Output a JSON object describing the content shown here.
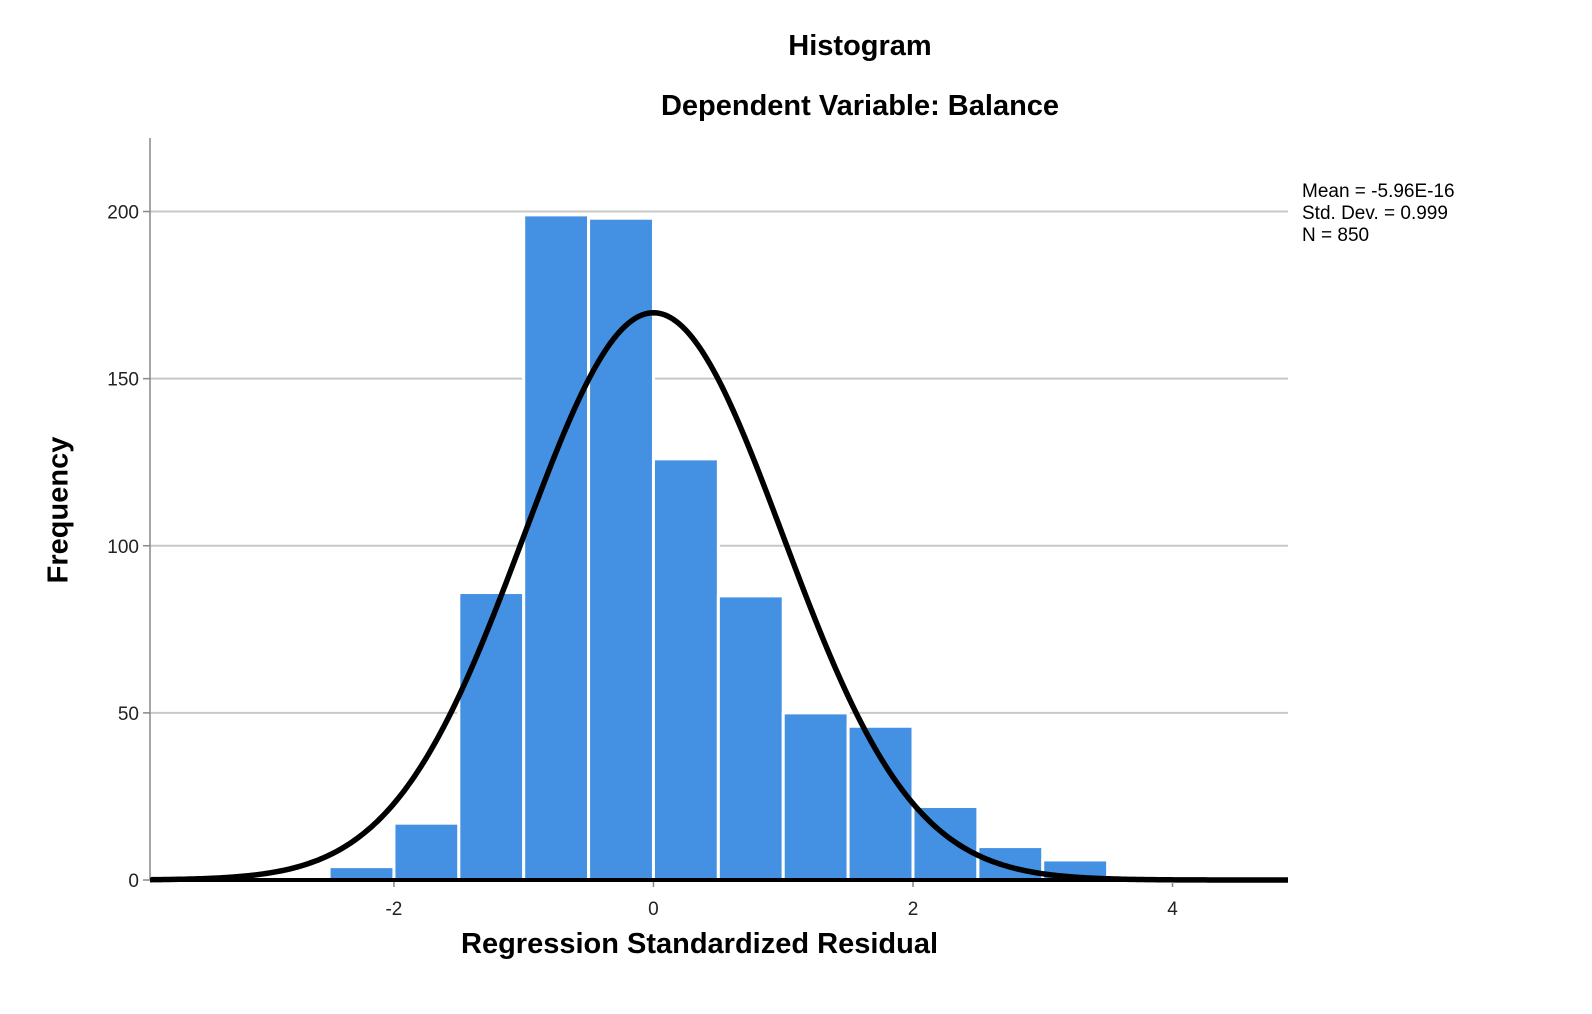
{
  "chart_data": {
    "type": "bar",
    "title": "Histogram",
    "subtitle": "Dependent Variable: Balance",
    "xlabel": "Regression Standardized Residual",
    "ylabel": "Frequency",
    "bin_width": 0.5,
    "bins": [
      {
        "x0": -2.5,
        "x1": -2.0,
        "count": 4
      },
      {
        "x0": -2.0,
        "x1": -1.5,
        "count": 17
      },
      {
        "x0": -1.5,
        "x1": -1.0,
        "count": 86
      },
      {
        "x0": -1.0,
        "x1": -0.5,
        "count": 199
      },
      {
        "x0": -0.5,
        "x1": 0.0,
        "count": 198
      },
      {
        "x0": 0.0,
        "x1": 0.5,
        "count": 126
      },
      {
        "x0": 0.5,
        "x1": 1.0,
        "count": 85
      },
      {
        "x0": 1.0,
        "x1": 1.5,
        "count": 50
      },
      {
        "x0": 1.5,
        "x1": 2.0,
        "count": 46
      },
      {
        "x0": 2.0,
        "x1": 2.5,
        "count": 22
      },
      {
        "x0": 2.5,
        "x1": 3.0,
        "count": 10
      },
      {
        "x0": 3.0,
        "x1": 3.5,
        "count": 6
      }
    ],
    "normal_curve": {
      "mean": -5.96e-16,
      "std": 0.999,
      "n": 850
    },
    "xlim": [
      -3.88,
      4.89
    ],
    "ylim": [
      0,
      222
    ],
    "xticks": [
      -2,
      0,
      2,
      4
    ],
    "yticks": [
      0,
      50,
      100,
      150,
      200
    ],
    "grid": "horizontal",
    "stats_text": [
      "Mean = -5.96E-16",
      "Std. Dev. = 0.999",
      "N = 850"
    ],
    "colors": {
      "bar": "#4490e2",
      "bar_edge": "#ffffff",
      "curve": "#000000",
      "grid": "#c8c8c8",
      "axis": "#000000"
    }
  }
}
